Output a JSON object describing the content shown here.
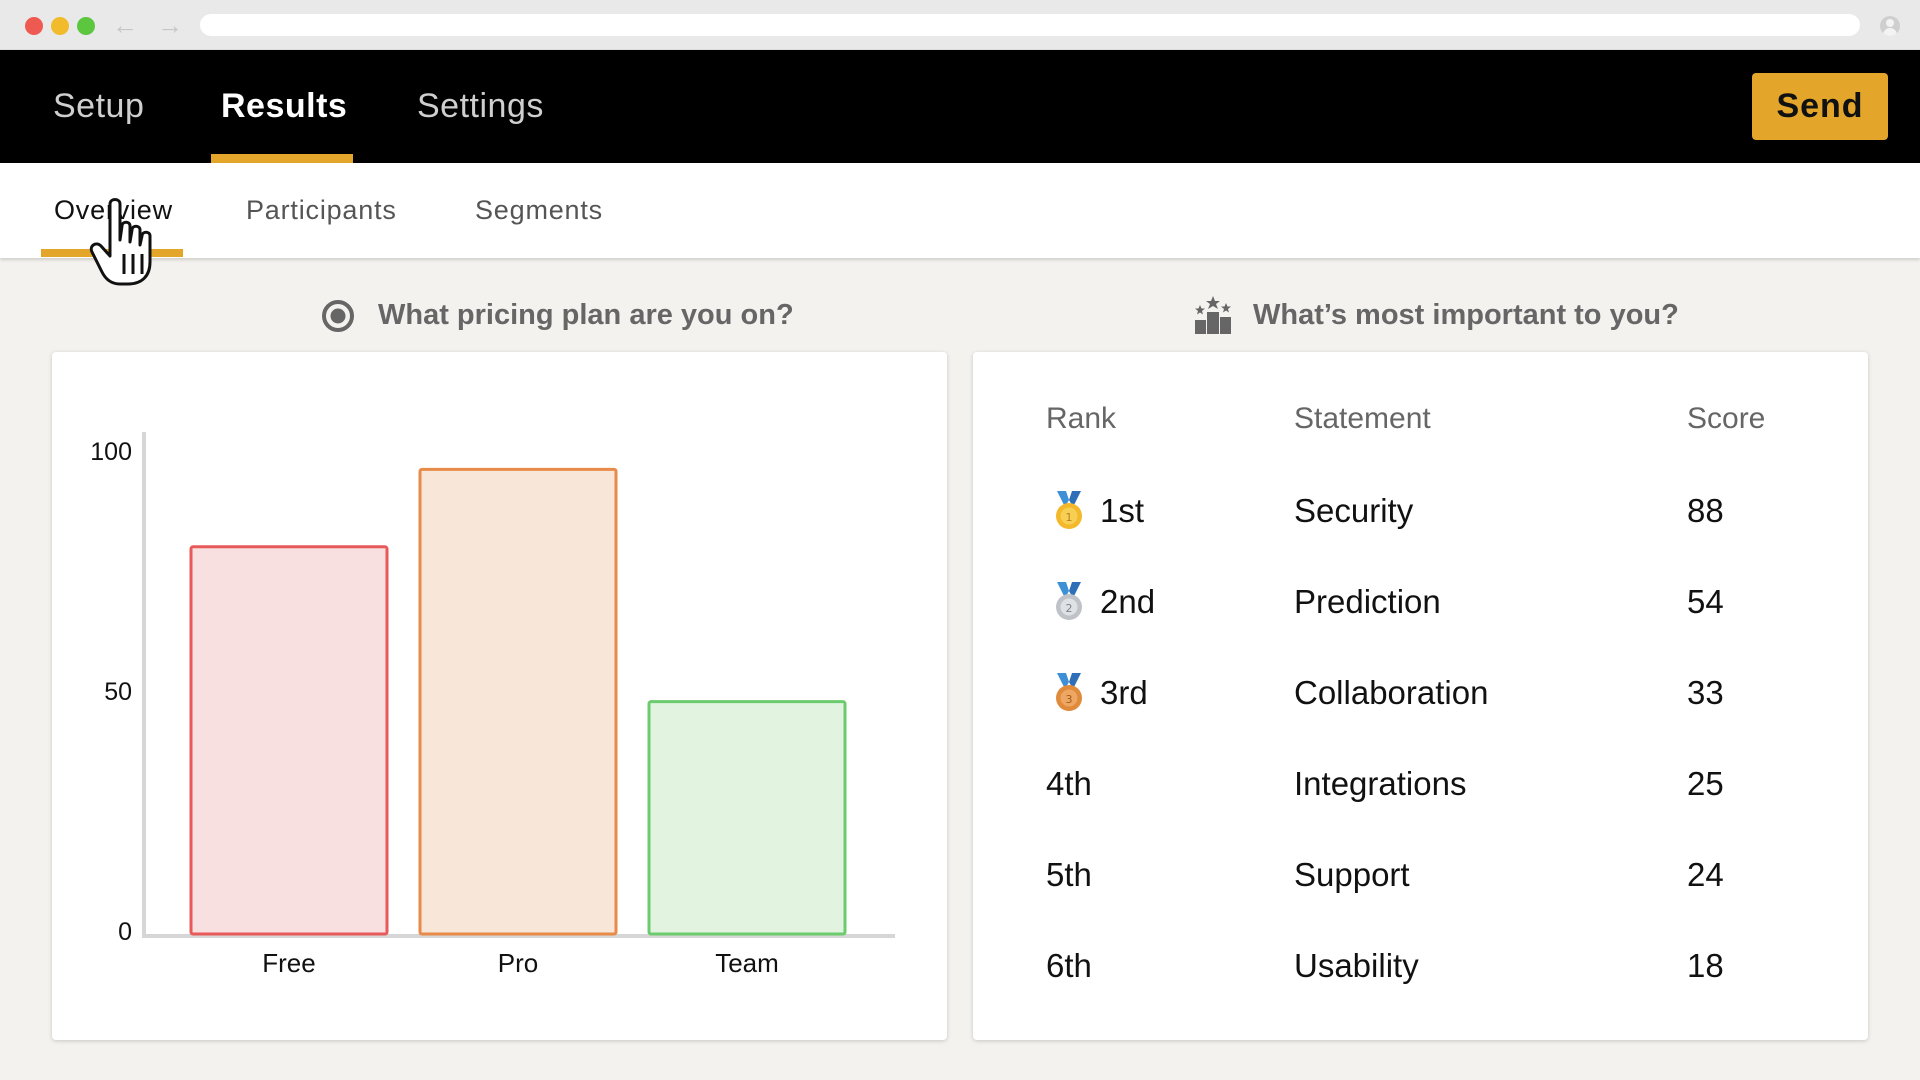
{
  "app": {
    "top_tabs": [
      {
        "label": "Setup"
      },
      {
        "label": "Results"
      },
      {
        "label": "Settings"
      }
    ],
    "active_top_tab": "Results",
    "send_label": "Send",
    "sub_tabs": [
      {
        "label": "Overview"
      },
      {
        "label": "Participants"
      },
      {
        "label": "Segments"
      }
    ],
    "active_sub_tab": "Overview"
  },
  "colors": {
    "accent": "#e3a62a",
    "nav_bg": "#000000",
    "page_bg": "#f4f2ee"
  },
  "poll": {
    "question": "What pricing plan are you on?",
    "icon": "radio-button-icon"
  },
  "ranking": {
    "question": "What’s most important to you?",
    "icon": "podium-icon",
    "headers": {
      "rank": "Rank",
      "statement": "Statement",
      "score": "Score"
    },
    "rows": [
      {
        "rank": "1st",
        "statement": "Security",
        "score": "88",
        "medal": "gold-medal-icon"
      },
      {
        "rank": "2nd",
        "statement": "Prediction",
        "score": "54",
        "medal": "silver-medal-icon"
      },
      {
        "rank": "3rd",
        "statement": "Collaboration",
        "score": "33",
        "medal": "bronze-medal-icon"
      },
      {
        "rank": "4th",
        "statement": "Integrations",
        "score": "25"
      },
      {
        "rank": "5th",
        "statement": "Support",
        "score": "24"
      },
      {
        "rank": "6th",
        "statement": "Usability",
        "score": "18"
      }
    ]
  },
  "chart_data": {
    "type": "bar",
    "categories": [
      "Free",
      "Pro",
      "Team"
    ],
    "values": [
      80,
      96,
      48
    ],
    "ylim": [
      0,
      100
    ],
    "yticks": [
      "0",
      "50",
      "100"
    ],
    "bar_colors": [
      {
        "stroke": "#e85a5a",
        "fill": "#f8dfe0"
      },
      {
        "stroke": "#e88a48",
        "fill": "#f8e6d8"
      },
      {
        "stroke": "#6ccb6c",
        "fill": "#e2f4e0"
      }
    ],
    "grid": false,
    "legend": "none"
  }
}
